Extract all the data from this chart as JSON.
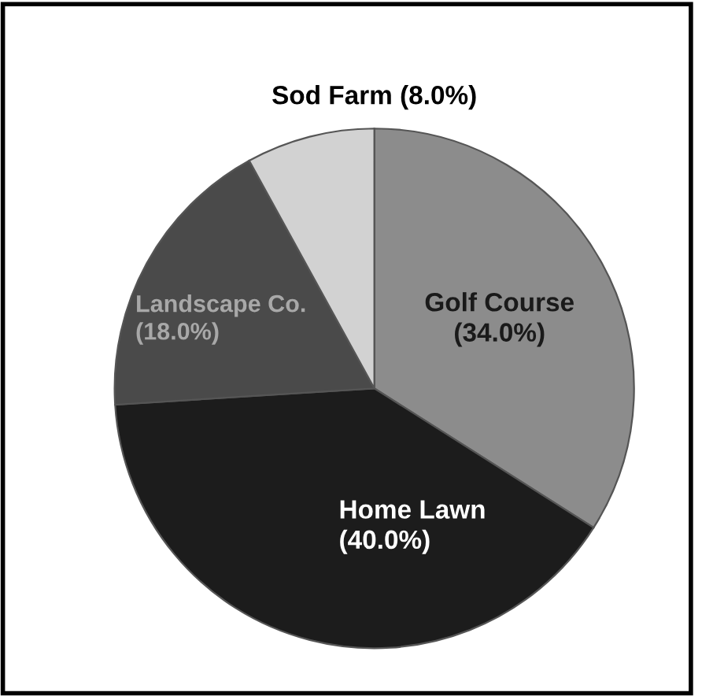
{
  "chart_data": {
    "type": "pie",
    "categories": [
      "Golf Course",
      "Home Lawn",
      "Landscape Co.",
      "Sod Farm"
    ],
    "values": [
      34.0,
      40.0,
      18.0,
      8.0
    ],
    "value_labels": [
      "(34.0%)",
      "(40.0%)",
      "(18.0%)",
      "(8.0%)"
    ],
    "colors": [
      "#8c8c8c",
      "#1c1c1c",
      "#4a4a4a",
      "#d2d2d2"
    ],
    "legend": false
  }
}
